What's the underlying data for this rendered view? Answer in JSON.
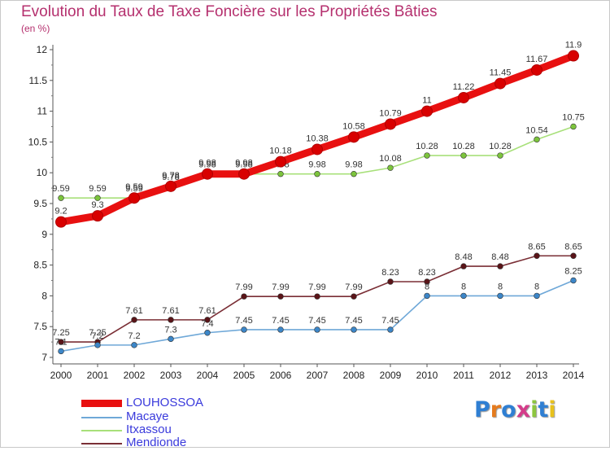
{
  "header": {
    "title": "Evolution du Taux de Taxe Foncière sur les Propriétés Bâties",
    "subtitle": "(en %)"
  },
  "logo": {
    "text": "Proxiti",
    "colors": [
      "#2f7fd3",
      "#e57b1e",
      "#2f7fd3",
      "#d43c8a",
      "#8dc63f",
      "#2f7fd3",
      "#e8c21c"
    ]
  },
  "chart_data": {
    "type": "line",
    "x": [
      2000,
      2001,
      2002,
      2003,
      2004,
      2005,
      2006,
      2007,
      2008,
      2009,
      2010,
      2011,
      2012,
      2013,
      2014
    ],
    "ylim": [
      7,
      12
    ],
    "yticks": [
      "7",
      "7.5",
      "8",
      "8.5",
      "9",
      "9.5",
      "10",
      "10.5",
      "11",
      "11.5",
      "12"
    ],
    "xticks": [
      "2000",
      "2001",
      "2002",
      "2003",
      "2004",
      "2005",
      "2006",
      "2007",
      "2008",
      "2009",
      "2010",
      "2011",
      "2012",
      "2013",
      "2014"
    ],
    "grid": false,
    "legend_position": "bottom-left",
    "series": [
      {
        "name": "Mendionde",
        "color": "#7a2e35",
        "marker_color": "#5a1418",
        "values": [
          7.25,
          7.25,
          7.61,
          7.61,
          7.61,
          7.99,
          7.99,
          7.99,
          7.99,
          8.23,
          8.23,
          8.48,
          8.48,
          8.65,
          8.65
        ],
        "labels": [
          "7.25",
          "7.25",
          "7.61",
          "7.61",
          "7.61",
          "7.99",
          "7.99",
          "7.99",
          "7.99",
          "8.23",
          "8.23",
          "8.48",
          "8.48",
          "8.65",
          "8.65"
        ]
      },
      {
        "name": "Macaye",
        "color": "#6fa8d8",
        "marker_color": "#3c86c8",
        "values": [
          7.1,
          7.2,
          7.2,
          7.3,
          7.4,
          7.45,
          7.45,
          7.45,
          7.45,
          7.45,
          8,
          8,
          8,
          8,
          8.25
        ],
        "labels": [
          "7.1",
          "7.2",
          "7.2",
          "7.3",
          "7.4",
          "7.45",
          "7.45",
          "7.45",
          "7.45",
          "7.45",
          "8",
          "8",
          "8",
          "8",
          "8.25"
        ]
      },
      {
        "name": "Itxassou",
        "color": "#a8e07a",
        "marker_color": "#7cc43c",
        "values": [
          9.59,
          9.59,
          9.59,
          9.78,
          9.98,
          9.98,
          9.98,
          9.98,
          9.98,
          10.08,
          10.28,
          10.28,
          10.28,
          10.54,
          10.75
        ],
        "labels": [
          "9.59",
          "9.59",
          "9.59",
          "9.78",
          "9.98",
          "9.98",
          "9.98",
          "9.98",
          "9.98",
          "10.08",
          "10.28",
          "10.28",
          "10.28",
          "10.54",
          "10.75"
        ]
      },
      {
        "name": "LOUHOSSOA",
        "color": "#e81010",
        "marker_color": "#d80000",
        "values": [
          9.2,
          9.3,
          9.59,
          9.78,
          9.98,
          9.98,
          10.18,
          10.38,
          10.58,
          10.79,
          11,
          11.22,
          11.45,
          11.67,
          11.9
        ],
        "labels": [
          "9.2",
          "9.3",
          "9.59",
          "9.78",
          "9.98",
          "9.98",
          "10.18",
          "10.38",
          "10.58",
          "10.79",
          "11",
          "11.22",
          "11.45",
          "11.67",
          "11.9"
        ]
      }
    ],
    "legend": [
      "LOUHOSSOA",
      "Macaye",
      "Itxassou",
      "Mendionde"
    ]
  }
}
